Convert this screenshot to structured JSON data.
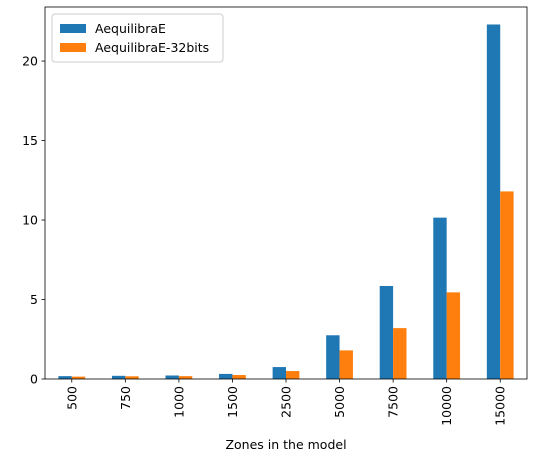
{
  "chart_data": {
    "type": "bar",
    "title": "",
    "xlabel": "Zones in the model",
    "ylabel": "",
    "categories": [
      "500",
      "750",
      "1000",
      "1500",
      "2500",
      "5000",
      "7500",
      "10000",
      "15000"
    ],
    "series": [
      {
        "name": "AequilibraE",
        "color": "#1f77b4",
        "values": [
          0.18,
          0.2,
          0.22,
          0.32,
          0.75,
          2.75,
          5.85,
          10.15,
          22.3
        ]
      },
      {
        "name": "AequilibraE-32bits",
        "color": "#ff7f0e",
        "values": [
          0.15,
          0.17,
          0.18,
          0.25,
          0.5,
          1.8,
          3.2,
          5.45,
          11.8
        ]
      }
    ],
    "ylim": [
      0,
      23.4
    ],
    "yticks": [
      "0",
      "5",
      "10",
      "15",
      "20"
    ],
    "ytick_values": [
      0,
      5,
      10,
      15,
      20
    ],
    "grid": false,
    "legend_position": "top-left"
  }
}
